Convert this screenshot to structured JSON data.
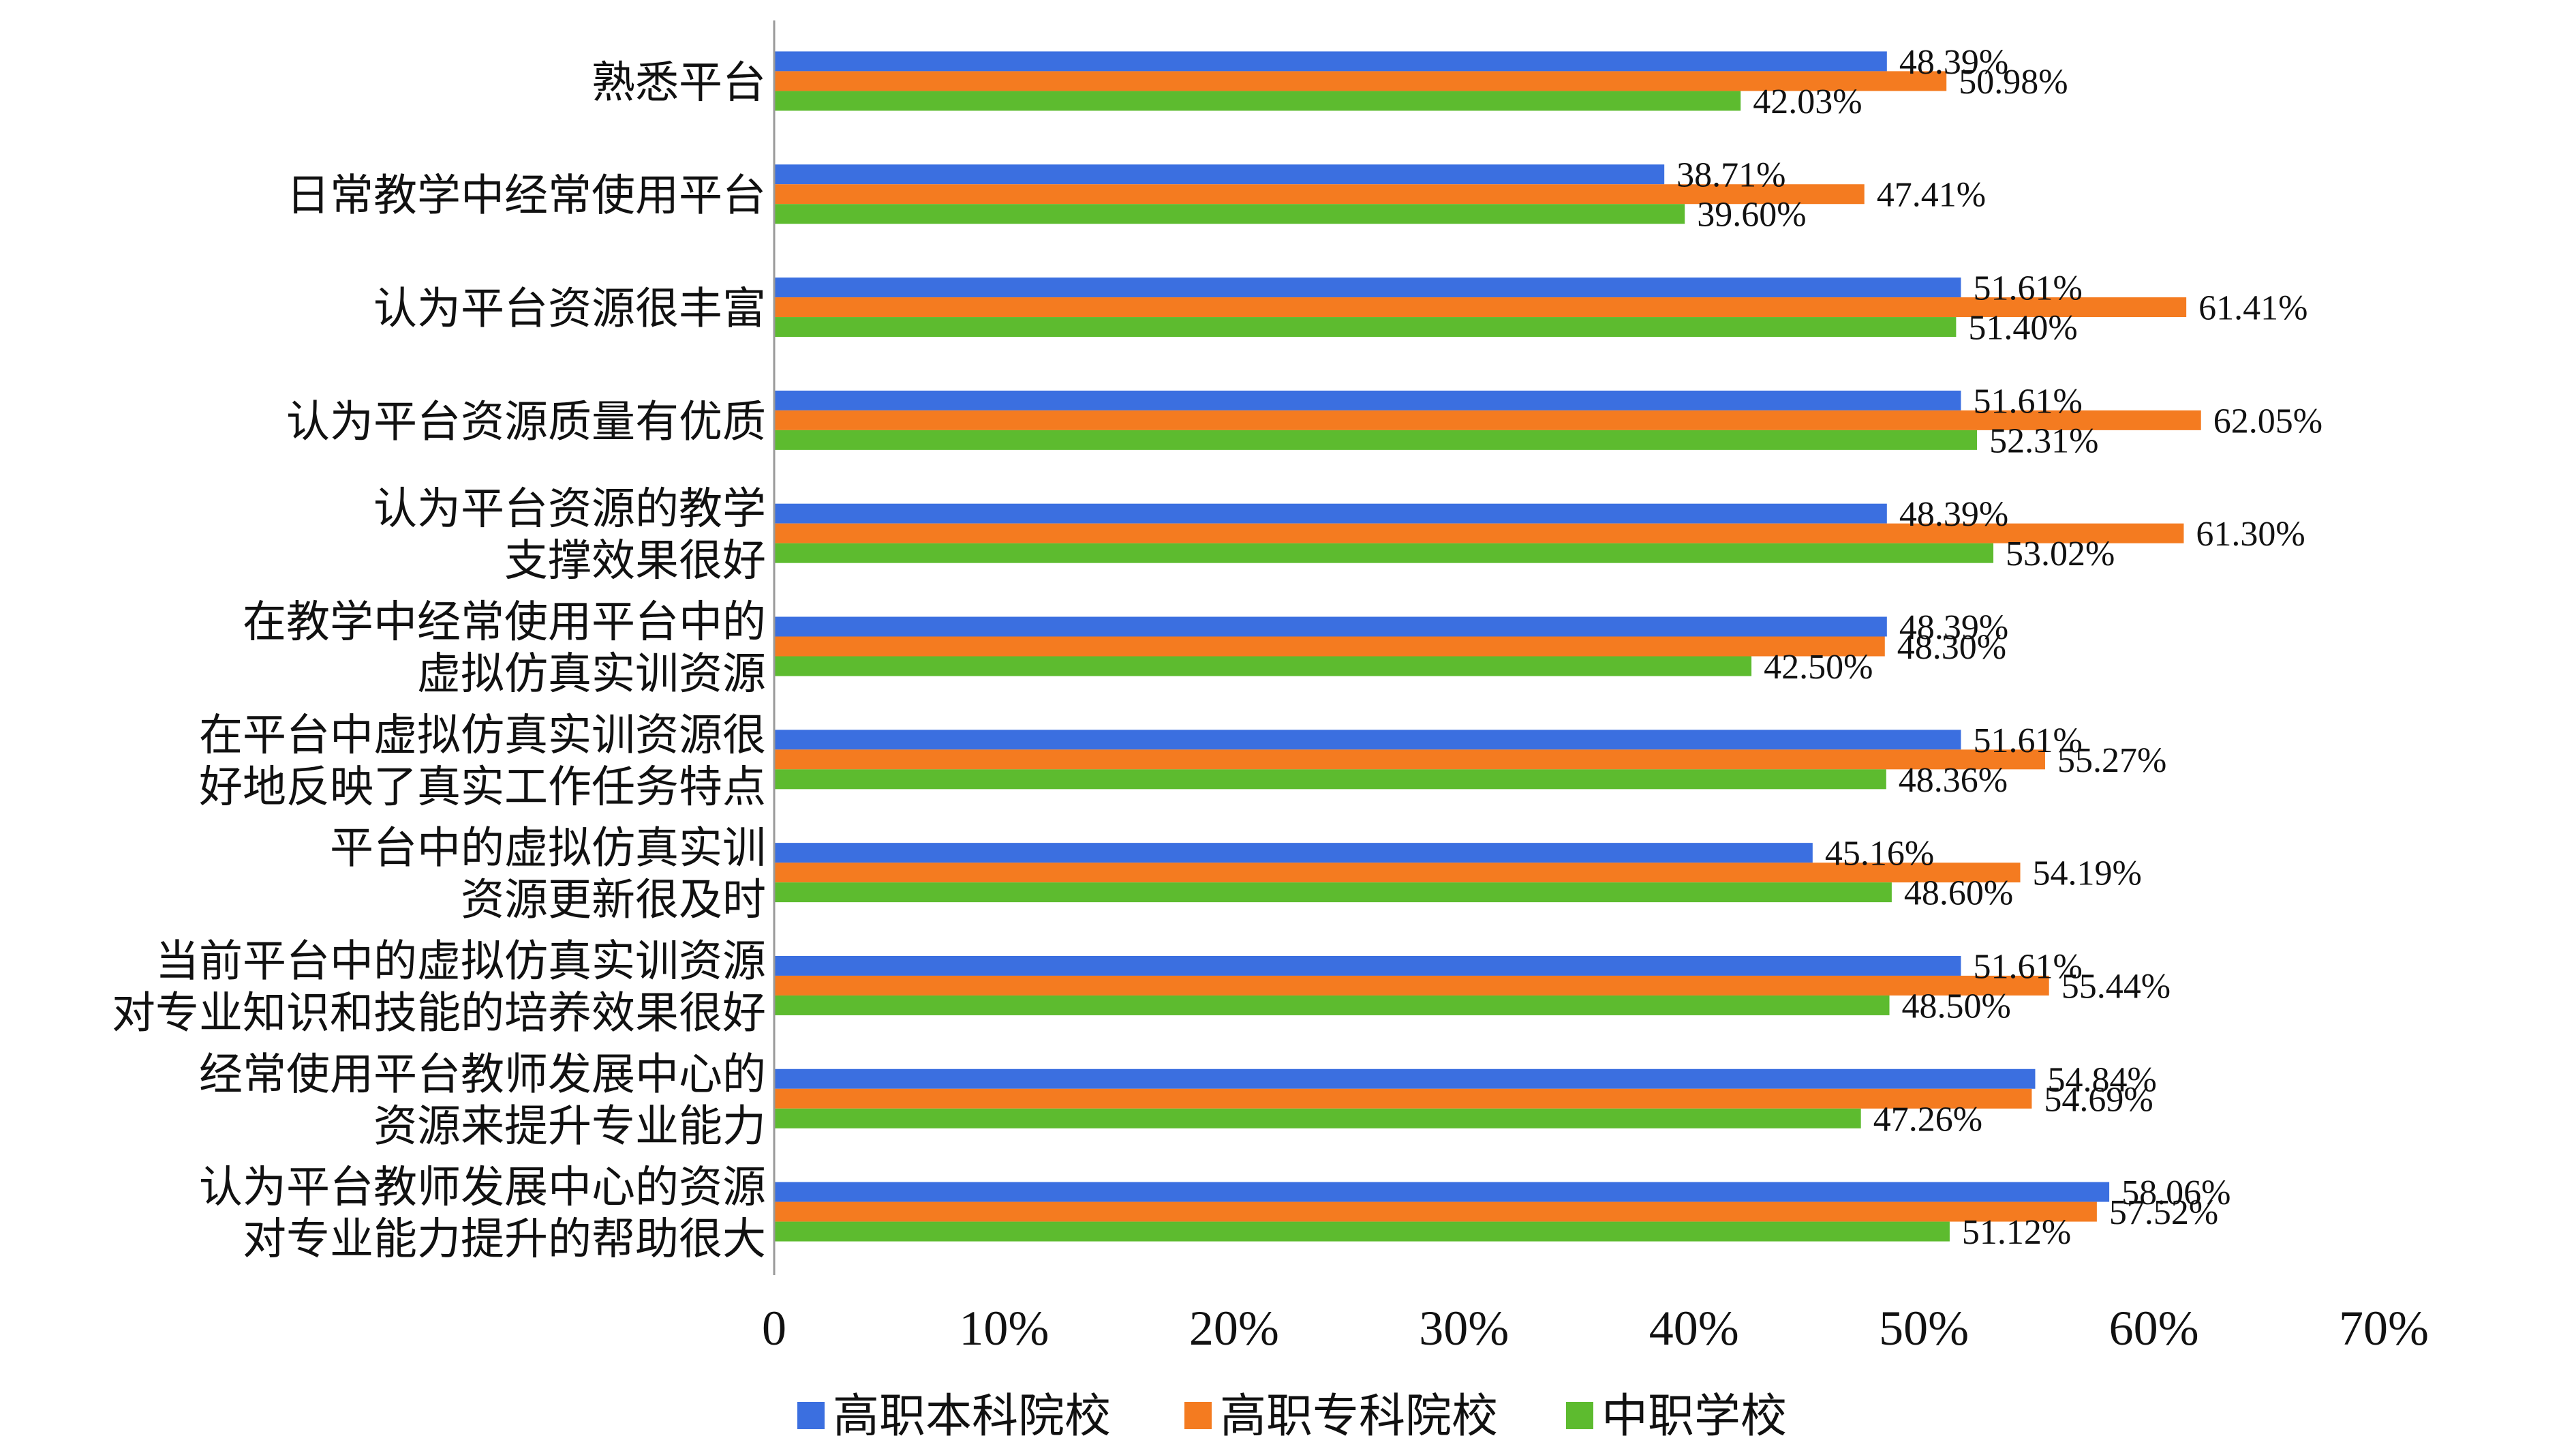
{
  "chart_data": {
    "type": "bar",
    "orientation": "horizontal",
    "categories": [
      [
        "熟悉平台"
      ],
      [
        "日常教学中经常使用平台"
      ],
      [
        "认为平台资源很丰富"
      ],
      [
        "认为平台资源质量有优质"
      ],
      [
        "认为平台资源的教学",
        "支撑效果很好"
      ],
      [
        "在教学中经常使用平台中的",
        "虚拟仿真实训资源"
      ],
      [
        "在平台中虚拟仿真实训资源很",
        "好地反映了真实工作任务特点"
      ],
      [
        "平台中的虚拟仿真实训",
        "资源更新很及时"
      ],
      [
        "当前平台中的虚拟仿真实训资源",
        "对专业知识和技能的培养效果很好"
      ],
      [
        "经常使用平台教师发展中心的",
        "资源来提升专业能力"
      ],
      [
        "认为平台教师发展中心的资源",
        "对专业能力提升的帮助很大"
      ]
    ],
    "series": [
      {
        "name": "高职本科院校",
        "color": "#3B6FE0",
        "values": [
          48.39,
          38.71,
          51.61,
          51.61,
          48.39,
          48.39,
          51.61,
          45.16,
          51.61,
          54.84,
          58.06
        ],
        "labels": [
          "48.39%",
          "38.71%",
          "51.61%",
          "51.61%",
          "48.39%",
          "48.39%",
          "51.61%",
          "45.16%",
          "51.61%",
          "54.84%",
          "58.06%"
        ]
      },
      {
        "name": "高职专科院校",
        "color": "#F47B20",
        "values": [
          50.98,
          47.41,
          61.41,
          62.05,
          61.3,
          48.3,
          55.27,
          54.19,
          55.44,
          54.69,
          57.52
        ],
        "labels": [
          "50.98%",
          "47.41%",
          "61.41%",
          "62.05%",
          "61.30%",
          "48.30%",
          "55.27%",
          "54.19%",
          "55.44%",
          "54.69%",
          "57.52%"
        ]
      },
      {
        "name": "中职学校",
        "color": "#5DBB2F",
        "values": [
          42.03,
          39.6,
          51.4,
          52.31,
          53.02,
          42.5,
          48.36,
          48.6,
          48.5,
          47.26,
          51.12
        ],
        "labels": [
          "42.03%",
          "39.60%",
          "51.40%",
          "52.31%",
          "53.02%",
          "42.50%",
          "48.36%",
          "48.60%",
          "48.50%",
          "47.26%",
          "51.12%"
        ]
      }
    ],
    "xlim": [
      0,
      70
    ],
    "x_ticks": [
      0,
      10,
      20,
      30,
      40,
      50,
      60,
      70
    ],
    "x_tick_labels": [
      "0",
      "10%",
      "20%",
      "30%",
      "40%",
      "50%",
      "60%",
      "70%"
    ],
    "grid": false,
    "legend_position": "bottom"
  }
}
